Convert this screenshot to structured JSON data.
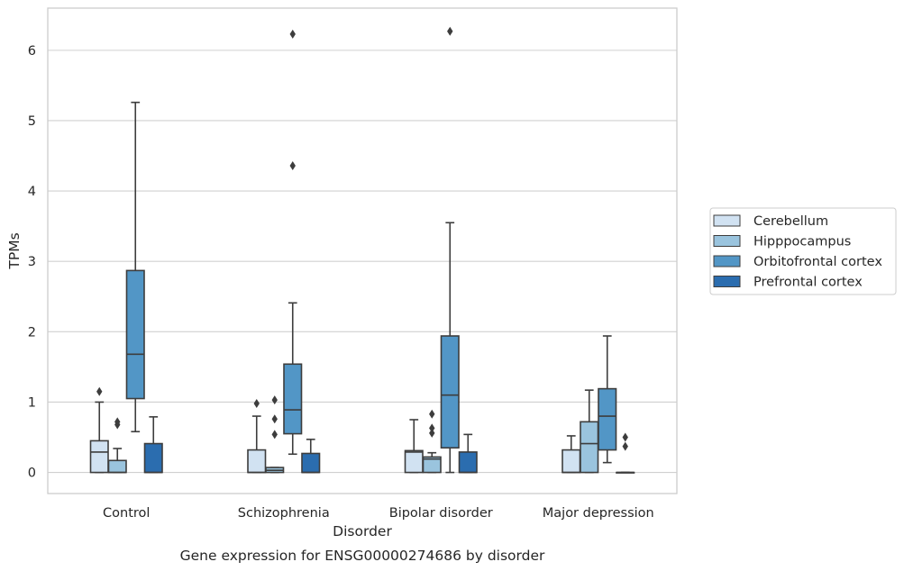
{
  "caption": "Gene expression for ENSG00000274686 by disorder",
  "chart_data": {
    "type": "box",
    "xlabel": "Disorder",
    "ylabel": "TPMs",
    "ylim": [
      -0.3,
      6.6
    ],
    "yticks": [
      0,
      1,
      2,
      3,
      4,
      5,
      6
    ],
    "grid": "horizontal",
    "legend_position": "right",
    "categories": [
      "Control",
      "Schizophrenia",
      "Bipolar disorder",
      "Major depression"
    ],
    "series": [
      {
        "name": "Cerebellum",
        "color": "#d1e2f2",
        "boxes": [
          {
            "q1": 0.0,
            "median": 0.29,
            "q3": 0.45,
            "whisker_low": 0.0,
            "whisker_high": 1.0,
            "outliers": [
              1.15
            ]
          },
          {
            "q1": 0.0,
            "median": 0.0,
            "q3": 0.32,
            "whisker_low": 0.0,
            "whisker_high": 0.8,
            "outliers": [
              0.98
            ]
          },
          {
            "q1": 0.0,
            "median": 0.29,
            "q3": 0.31,
            "whisker_low": 0.0,
            "whisker_high": 0.75,
            "outliers": []
          },
          {
            "q1": 0.0,
            "median": 0.0,
            "q3": 0.32,
            "whisker_low": 0.0,
            "whisker_high": 0.52,
            "outliers": []
          }
        ]
      },
      {
        "name": "Hipppocampus",
        "color": "#9ac4de",
        "boxes": [
          {
            "q1": 0.0,
            "median": 0.0,
            "q3": 0.17,
            "whisker_low": 0.0,
            "whisker_high": 0.34,
            "outliers": [
              0.68,
              0.72
            ]
          },
          {
            "q1": 0.0,
            "median": 0.03,
            "q3": 0.07,
            "whisker_low": 0.0,
            "whisker_high": 0.07,
            "outliers": [
              0.54,
              0.76,
              1.03
            ]
          },
          {
            "q1": 0.0,
            "median": 0.19,
            "q3": 0.22,
            "whisker_low": 0.0,
            "whisker_high": 0.28,
            "outliers": [
              0.56,
              0.63,
              0.83
            ]
          },
          {
            "q1": 0.0,
            "median": 0.41,
            "q3": 0.72,
            "whisker_low": 0.0,
            "whisker_high": 1.17,
            "outliers": []
          }
        ]
      },
      {
        "name": "Orbitofrontal cortex",
        "color": "#5296c6",
        "boxes": [
          {
            "q1": 1.05,
            "median": 1.68,
            "q3": 2.87,
            "whisker_low": 0.58,
            "whisker_high": 5.26,
            "outliers": []
          },
          {
            "q1": 0.55,
            "median": 0.89,
            "q3": 1.54,
            "whisker_low": 0.26,
            "whisker_high": 2.41,
            "outliers": [
              4.36,
              6.23
            ]
          },
          {
            "q1": 0.35,
            "median": 1.1,
            "q3": 1.94,
            "whisker_low": 0.0,
            "whisker_high": 3.55,
            "outliers": [
              6.27
            ]
          },
          {
            "q1": 0.32,
            "median": 0.8,
            "q3": 1.19,
            "whisker_low": 0.14,
            "whisker_high": 1.94,
            "outliers": []
          }
        ]
      },
      {
        "name": "Prefrontal cortex",
        "color": "#2b6daf",
        "boxes": [
          {
            "q1": 0.0,
            "median": 0.0,
            "q3": 0.41,
            "whisker_low": 0.0,
            "whisker_high": 0.79,
            "outliers": []
          },
          {
            "q1": 0.0,
            "median": 0.0,
            "q3": 0.27,
            "whisker_low": 0.0,
            "whisker_high": 0.47,
            "outliers": []
          },
          {
            "q1": 0.0,
            "median": 0.0,
            "q3": 0.29,
            "whisker_low": 0.0,
            "whisker_high": 0.54,
            "outliers": []
          },
          {
            "q1": 0.0,
            "median": 0.0,
            "q3": 0.0,
            "whisker_low": 0.0,
            "whisker_high": 0.0,
            "outliers": [
              0.37,
              0.5
            ]
          }
        ]
      }
    ]
  }
}
